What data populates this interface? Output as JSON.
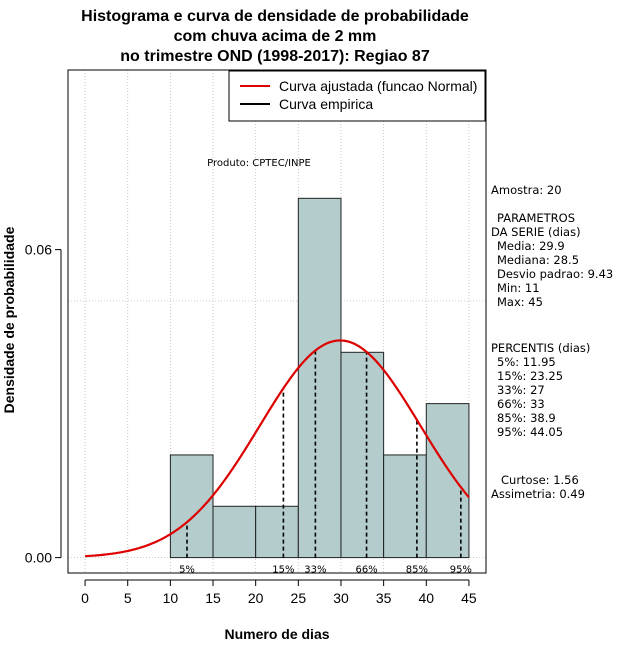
{
  "chart_data": {
    "type": "bar",
    "title_lines": [
      "Histograma e curva de densidade de probabilidade",
      "com chuva acima de 2 mm",
      "no trimestre OND (1998-2017): Regiao 87"
    ],
    "xlabel": "Numero de dias",
    "ylabel": "Densidade de probabilidade",
    "xlim": [
      -2,
      47
    ],
    "ylim": [
      -0.003,
      0.095
    ],
    "x_ticks": [
      0,
      5,
      10,
      15,
      20,
      25,
      30,
      35,
      40,
      45
    ],
    "x_tick_labels": [
      "0",
      "5",
      "10",
      "15",
      "20",
      "25",
      "30",
      "35",
      "40",
      "45"
    ],
    "y_ticks": [
      0.0,
      0.06
    ],
    "y_tick_labels": [
      "0.00",
      "0.06"
    ],
    "gridlines_x": [
      0,
      5,
      10,
      15,
      20,
      25,
      30,
      35,
      40,
      45
    ],
    "gridlines_y": [
      0.0,
      0.05,
      0.1
    ],
    "bins": [
      {
        "from": 10,
        "to": 15,
        "density": 0.02
      },
      {
        "from": 15,
        "to": 20,
        "density": 0.01
      },
      {
        "from": 20,
        "to": 25,
        "density": 0.01
      },
      {
        "from": 25,
        "to": 30,
        "density": 0.07
      },
      {
        "from": 30,
        "to": 35,
        "density": 0.04
      },
      {
        "from": 35,
        "to": 40,
        "density": 0.02
      },
      {
        "from": 40,
        "to": 45,
        "density": 0.03
      }
    ],
    "normal_fit": {
      "mean": 29.9,
      "sd": 9.43,
      "x_from": 0,
      "x_to": 45
    },
    "percentile_lines": [
      {
        "label": "5%",
        "x": 11.95
      },
      {
        "label": "15%",
        "x": 23.25
      },
      {
        "label": "33%",
        "x": 27
      },
      {
        "label": "66%",
        "x": 33
      },
      {
        "label": "85%",
        "x": 38.9
      },
      {
        "label": "95%",
        "x": 44.05
      }
    ],
    "legend": [
      {
        "label": "Curva ajustada (funcao Normal)",
        "color": "#dd0000"
      },
      {
        "label": "Curva empirica",
        "color": "#000000"
      }
    ],
    "legend_position": "top-right",
    "annotation": "Produto: CPTEC/INPE"
  },
  "colors": {
    "bar_fill": "#b4cccc",
    "bar_stroke": "#222222",
    "curve": "#dd0000",
    "grid": "#bbbbbb"
  },
  "side_panel": {
    "amostra": "Amostra: 20",
    "parametros_title_1": "PARAMETROS",
    "parametros_title_2": "DA SERIE (dias)",
    "media": "Media: 29.9",
    "mediana": "Mediana: 28.5",
    "desvio": "Desvio padrao: 9.43",
    "min": "Min: 11",
    "max": "Max: 45",
    "percentis_title": "PERCENTIS (dias)",
    "p5": "5%: 11.95",
    "p15": "15%: 23.25",
    "p33": "33%: 27",
    "p66": "66%: 33",
    "p85": "85%: 38.9",
    "p95": "95%: 44.05",
    "curtose": "Curtose: 1.56",
    "assimetria": "Assimetria: 0.49"
  }
}
